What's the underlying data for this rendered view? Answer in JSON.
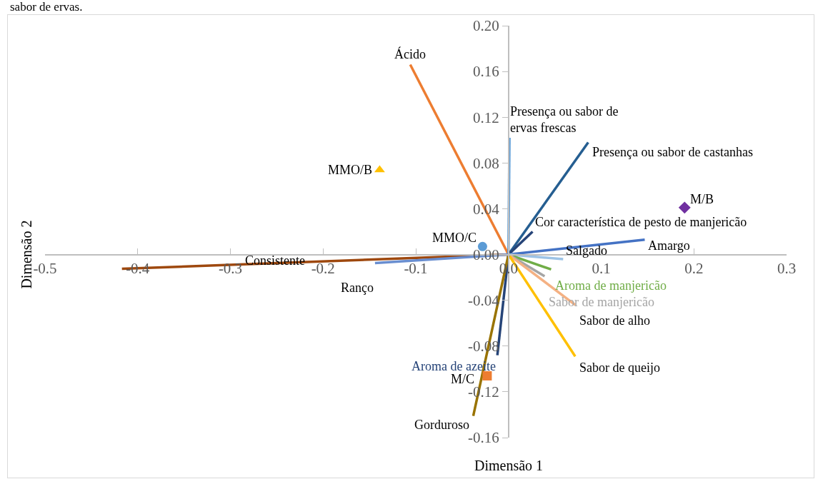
{
  "chart_data": {
    "type": "line",
    "xlabel": "Dimensão 1",
    "ylabel": "Dimensão 2",
    "annotations": [
      "sabor de ervas."
    ],
    "xlim": [
      -0.5,
      0.3
    ],
    "ylim": [
      -0.16,
      0.2
    ],
    "xticks": [
      -0.5,
      -0.4,
      -0.3,
      -0.2,
      -0.1,
      {
        "value": 0,
        "label": "0.0"
      },
      0.1,
      0.2,
      0.3
    ],
    "yticks": [
      -0.16,
      -0.12,
      -0.08,
      -0.04,
      {
        "value": 0,
        "label": "0.00"
      },
      0.04,
      0.08,
      0.12,
      0.16,
      {
        "value": 0.2,
        "label": "0.20"
      }
    ],
    "grid": false,
    "legend": false,
    "marker": "none",
    "line_style": "solid",
    "series": [
      {
        "name": "Ácido",
        "color": "#ed7d31",
        "x": [
          0,
          -0.106
        ],
        "values": [
          0,
          0.166
        ]
      },
      {
        "name": "Presença ou sabor de ervas frescas",
        "color": "#5b9bd5",
        "x": [
          0,
          0.001
        ],
        "values": [
          0,
          0.102
        ]
      },
      {
        "name": "Presença ou sabor de castanhas",
        "color": "#255e91",
        "x": [
          0,
          0.086
        ],
        "values": [
          0,
          0.098
        ]
      },
      {
        "name": "Cor característica de pesto de manjericão",
        "color": "#264478",
        "x": [
          0,
          0.026
        ],
        "values": [
          0,
          0.02
        ]
      },
      {
        "name": "Amargo",
        "color": "#4472c4",
        "x": [
          0,
          0.147
        ],
        "values": [
          0,
          0.013
        ]
      },
      {
        "name": "Salgado",
        "color": "#9dc3e6",
        "x": [
          0,
          0.059
        ],
        "values": [
          0,
          -0.004
        ]
      },
      {
        "name": "Aroma de manjericão",
        "color": "#70ad47",
        "x": [
          0,
          0.046
        ],
        "values": [
          0,
          -0.013
        ]
      },
      {
        "name": "Sabor de manjericão",
        "color": "#a5a5a5",
        "x": [
          0,
          0.039
        ],
        "values": [
          0,
          -0.019
        ]
      },
      {
        "name": "Sabor de alho",
        "color": "#f4b183",
        "x": [
          0,
          0.072
        ],
        "values": [
          0,
          -0.044
        ]
      },
      {
        "name": "Sabor de queijo",
        "color": "#ffc000",
        "x": [
          0,
          0.072
        ],
        "values": [
          0,
          -0.089
        ]
      },
      {
        "name": "Aroma de azeite",
        "color": "#264478",
        "x": [
          0,
          -0.012
        ],
        "values": [
          0,
          -0.088
        ]
      },
      {
        "name": "Gorduroso",
        "color": "#997300",
        "x": [
          0,
          -0.038
        ],
        "values": [
          0,
          -0.141
        ]
      },
      {
        "name": "Consistente",
        "color": "#9e480e",
        "x": [
          0,
          -0.417
        ],
        "values": [
          0,
          -0.0125
        ]
      },
      {
        "name": "Ranço",
        "color": "#698ed0",
        "x": [
          0,
          -0.144
        ],
        "values": [
          0,
          -0.0075
        ]
      },
      {
        "name": "MMO/B",
        "type": "scatter",
        "marker": "triangle",
        "color": "#ffc000",
        "x": [
          -0.139
        ],
        "values": [
          0.074
        ]
      },
      {
        "name": "M/B",
        "type": "scatter",
        "marker": "diamond",
        "color": "#7030a0",
        "x": [
          0.19
        ],
        "values": [
          0.041
        ]
      },
      {
        "name": "M/C",
        "type": "scatter",
        "marker": "square",
        "color": "#ed7d31",
        "x": [
          -0.023
        ],
        "values": [
          -0.106
        ]
      },
      {
        "name": "MMO/C",
        "type": "scatter",
        "marker": "circle",
        "color": "#5b9bd5",
        "x": [
          -0.028
        ],
        "values": [
          0.007
        ]
      }
    ]
  }
}
